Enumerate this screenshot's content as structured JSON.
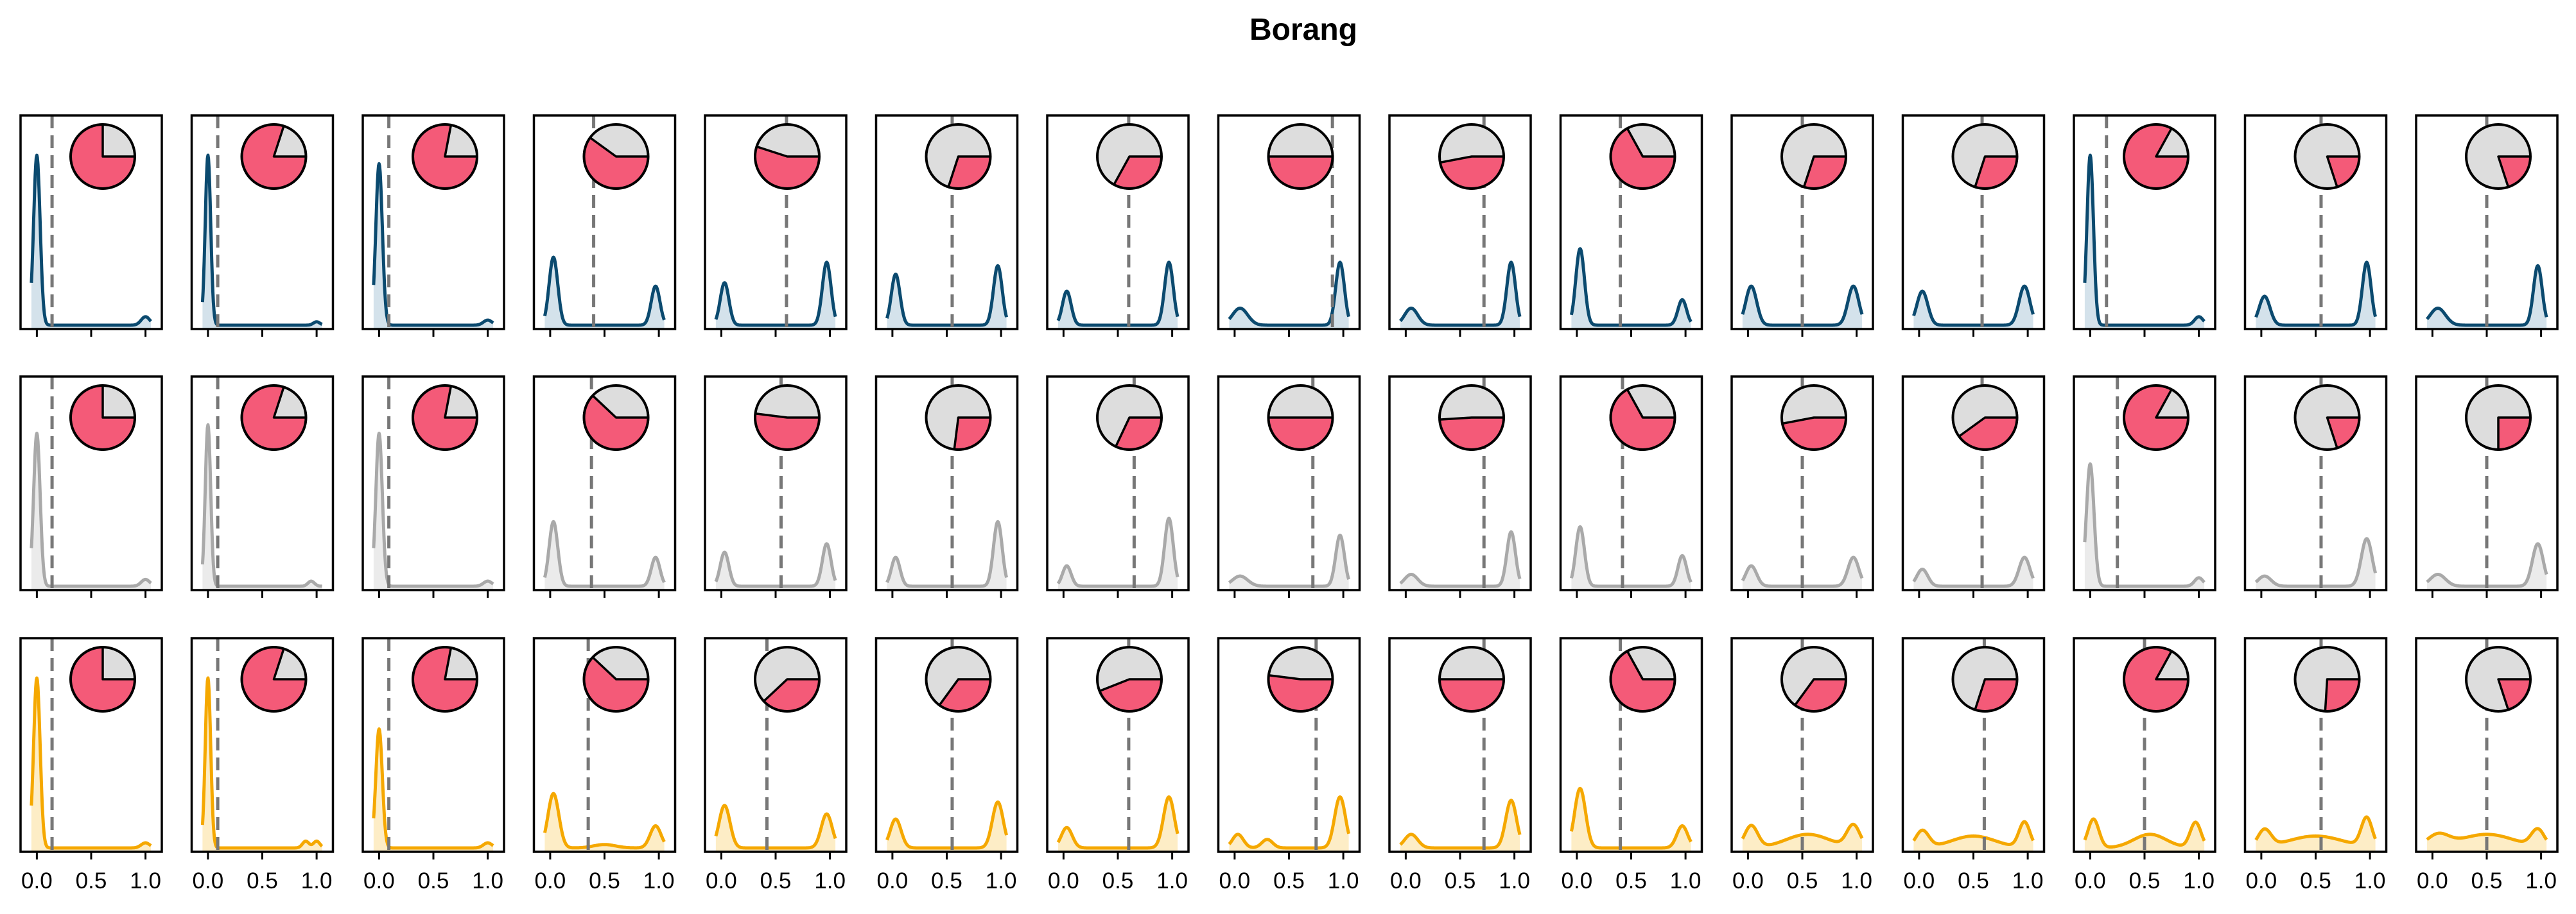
{
  "chart_data": {
    "type": "density-grid",
    "title": "Borang",
    "x_tick_labels": [
      "0.0",
      "0.5",
      "1.0"
    ],
    "xlim": [
      -0.15,
      1.15
    ],
    "pie_colors": {
      "filled": "#f45a78",
      "empty": "#dddddd"
    },
    "rows": [
      {
        "name": "",
        "color": "#0b4a6f",
        "fill": "#c9dbe6"
      },
      {
        "name": "",
        "color": "#a9a9a9",
        "fill": "#e6e6e6"
      },
      {
        "name": "",
        "color": "#f5a800",
        "fill": "#fde8b8"
      }
    ],
    "columns": [
      {
        "peaks": [
          [
            0.0,
            0.03,
            1.0
          ]
        ],
        "rows": [
          {
            "fraction": 0.75,
            "threshold": 0.14,
            "shape": [
              [
                0.0,
                1.0,
                0.03
              ],
              [
                1.0,
                0.05,
                0.04
              ]
            ]
          },
          {
            "fraction": 0.75,
            "threshold": 0.14,
            "shape": [
              [
                0.0,
                0.9,
                0.03
              ],
              [
                1.0,
                0.04,
                0.04
              ]
            ]
          },
          {
            "fraction": 0.75,
            "threshold": 0.14,
            "shape": [
              [
                0.0,
                1.0,
                0.03
              ],
              [
                1.0,
                0.03,
                0.04
              ]
            ]
          }
        ]
      },
      {
        "rows": [
          {
            "fraction": 0.8,
            "threshold": 0.09,
            "shape": [
              [
                0.0,
                1.0,
                0.025
              ],
              [
                1.0,
                0.02,
                0.03
              ]
            ]
          },
          {
            "fraction": 0.8,
            "threshold": 0.09,
            "shape": [
              [
                0.0,
                0.95,
                0.025
              ],
              [
                0.95,
                0.03,
                0.03
              ]
            ]
          },
          {
            "fraction": 0.8,
            "threshold": 0.09,
            "shape": [
              [
                0.0,
                1.0,
                0.025
              ],
              [
                0.9,
                0.04,
                0.03
              ],
              [
                1.0,
                0.04,
                0.03
              ]
            ]
          }
        ]
      },
      {
        "rows": [
          {
            "fraction": 0.78,
            "threshold": 0.09,
            "shape": [
              [
                0.0,
                0.95,
                0.03
              ],
              [
                1.0,
                0.03,
                0.04
              ]
            ]
          },
          {
            "fraction": 0.78,
            "threshold": 0.09,
            "shape": [
              [
                0.0,
                0.9,
                0.03
              ],
              [
                1.0,
                0.03,
                0.04
              ]
            ]
          },
          {
            "fraction": 0.78,
            "threshold": 0.09,
            "shape": [
              [
                0.0,
                0.7,
                0.03
              ],
              [
                1.0,
                0.03,
                0.04
              ]
            ]
          }
        ]
      },
      {
        "rows": [
          {
            "fraction": 0.6,
            "threshold": 0.4,
            "shape": [
              [
                0.03,
                0.4,
                0.04
              ],
              [
                0.97,
                0.23,
                0.04
              ]
            ]
          },
          {
            "fraction": 0.62,
            "threshold": 0.38,
            "shape": [
              [
                0.03,
                0.38,
                0.04
              ],
              [
                0.97,
                0.17,
                0.04
              ]
            ]
          },
          {
            "fraction": 0.62,
            "threshold": 0.35,
            "shape": [
              [
                0.03,
                0.32,
                0.05
              ],
              [
                0.5,
                0.02,
                0.1
              ],
              [
                0.97,
                0.13,
                0.05
              ]
            ]
          }
        ]
      },
      {
        "rows": [
          {
            "fraction": 0.55,
            "threshold": 0.6,
            "shape": [
              [
                0.03,
                0.25,
                0.04
              ],
              [
                0.97,
                0.37,
                0.04
              ]
            ]
          },
          {
            "fraction": 0.52,
            "threshold": 0.55,
            "shape": [
              [
                0.03,
                0.2,
                0.04
              ],
              [
                0.97,
                0.25,
                0.04
              ]
            ]
          },
          {
            "fraction": 0.38,
            "threshold": 0.42,
            "shape": [
              [
                0.03,
                0.25,
                0.05
              ],
              [
                0.97,
                0.2,
                0.05
              ]
            ]
          }
        ]
      },
      {
        "rows": [
          {
            "fraction": 0.3,
            "threshold": 0.55,
            "shape": [
              [
                0.03,
                0.3,
                0.04
              ],
              [
                0.97,
                0.35,
                0.04
              ]
            ]
          },
          {
            "fraction": 0.27,
            "threshold": 0.55,
            "shape": [
              [
                0.03,
                0.17,
                0.04
              ],
              [
                0.97,
                0.38,
                0.04
              ]
            ]
          },
          {
            "fraction": 0.35,
            "threshold": 0.55,
            "shape": [
              [
                0.03,
                0.17,
                0.05
              ],
              [
                0.97,
                0.27,
                0.05
              ]
            ]
          }
        ]
      },
      {
        "rows": [
          {
            "fraction": 0.33,
            "threshold": 0.6,
            "shape": [
              [
                0.03,
                0.2,
                0.04
              ],
              [
                0.97,
                0.37,
                0.04
              ]
            ]
          },
          {
            "fraction": 0.32,
            "threshold": 0.65,
            "shape": [
              [
                0.03,
                0.12,
                0.04
              ],
              [
                0.97,
                0.4,
                0.04
              ]
            ]
          },
          {
            "fraction": 0.44,
            "threshold": 0.6,
            "shape": [
              [
                0.03,
                0.12,
                0.05
              ],
              [
                0.97,
                0.3,
                0.05
              ]
            ]
          }
        ]
      },
      {
        "rows": [
          {
            "fraction": 0.5,
            "threshold": 0.9,
            "shape": [
              [
                0.05,
                0.1,
                0.07
              ],
              [
                0.97,
                0.37,
                0.04
              ]
            ]
          },
          {
            "fraction": 0.5,
            "threshold": 0.72,
            "shape": [
              [
                0.05,
                0.06,
                0.07
              ],
              [
                0.97,
                0.3,
                0.04
              ]
            ]
          },
          {
            "fraction": 0.52,
            "threshold": 0.75,
            "shape": [
              [
                0.03,
                0.08,
                0.05
              ],
              [
                0.3,
                0.05,
                0.05
              ],
              [
                0.97,
                0.3,
                0.05
              ]
            ]
          }
        ]
      },
      {
        "rows": [
          {
            "fraction": 0.47,
            "threshold": 0.72,
            "shape": [
              [
                0.05,
                0.1,
                0.06
              ],
              [
                0.97,
                0.37,
                0.04
              ]
            ]
          },
          {
            "fraction": 0.49,
            "threshold": 0.72,
            "shape": [
              [
                0.05,
                0.07,
                0.06
              ],
              [
                0.97,
                0.32,
                0.04
              ]
            ]
          },
          {
            "fraction": 0.5,
            "threshold": 0.72,
            "shape": [
              [
                0.05,
                0.08,
                0.06
              ],
              [
                0.97,
                0.28,
                0.05
              ]
            ]
          }
        ]
      },
      {
        "rows": [
          {
            "fraction": 0.67,
            "threshold": 0.4,
            "shape": [
              [
                0.03,
                0.45,
                0.04
              ],
              [
                0.97,
                0.15,
                0.04
              ]
            ]
          },
          {
            "fraction": 0.67,
            "threshold": 0.42,
            "shape": [
              [
                0.03,
                0.35,
                0.04
              ],
              [
                0.97,
                0.18,
                0.04
              ]
            ]
          },
          {
            "fraction": 0.67,
            "threshold": 0.4,
            "shape": [
              [
                0.03,
                0.35,
                0.05
              ],
              [
                0.97,
                0.13,
                0.05
              ]
            ]
          }
        ]
      },
      {
        "rows": [
          {
            "fraction": 0.3,
            "threshold": 0.5,
            "shape": [
              [
                0.03,
                0.23,
                0.05
              ],
              [
                0.97,
                0.23,
                0.05
              ]
            ]
          },
          {
            "fraction": 0.47,
            "threshold": 0.5,
            "shape": [
              [
                0.03,
                0.12,
                0.05
              ],
              [
                0.97,
                0.17,
                0.05
              ]
            ]
          },
          {
            "fraction": 0.35,
            "threshold": 0.5,
            "shape": [
              [
                0.03,
                0.13,
                0.06
              ],
              [
                0.55,
                0.08,
                0.2
              ],
              [
                0.97,
                0.13,
                0.06
              ]
            ]
          }
        ]
      },
      {
        "rows": [
          {
            "fraction": 0.3,
            "threshold": 0.58,
            "shape": [
              [
                0.03,
                0.2,
                0.05
              ],
              [
                0.97,
                0.23,
                0.05
              ]
            ]
          },
          {
            "fraction": 0.4,
            "threshold": 0.58,
            "shape": [
              [
                0.03,
                0.1,
                0.05
              ],
              [
                0.97,
                0.17,
                0.05
              ]
            ]
          },
          {
            "fraction": 0.3,
            "threshold": 0.6,
            "shape": [
              [
                0.03,
                0.1,
                0.06
              ],
              [
                0.5,
                0.07,
                0.2
              ],
              [
                0.97,
                0.15,
                0.05
              ]
            ]
          }
        ]
      },
      {
        "rows": [
          {
            "fraction": 0.83,
            "threshold": 0.15,
            "shape": [
              [
                0.0,
                1.0,
                0.03
              ],
              [
                1.0,
                0.05,
                0.04
              ]
            ]
          },
          {
            "fraction": 0.83,
            "threshold": 0.25,
            "shape": [
              [
                0.0,
                0.72,
                0.035
              ],
              [
                1.0,
                0.05,
                0.04
              ]
            ]
          },
          {
            "fraction": 0.83,
            "threshold": 0.5,
            "shape": [
              [
                0.03,
                0.17,
                0.05
              ],
              [
                0.55,
                0.08,
                0.15
              ],
              [
                0.97,
                0.15,
                0.05
              ]
            ]
          }
        ]
      },
      {
        "rows": [
          {
            "fraction": 0.2,
            "threshold": 0.55,
            "shape": [
              [
                0.03,
                0.17,
                0.05
              ],
              [
                0.97,
                0.37,
                0.04
              ]
            ]
          },
          {
            "fraction": 0.2,
            "threshold": 0.55,
            "shape": [
              [
                0.03,
                0.06,
                0.06
              ],
              [
                0.97,
                0.28,
                0.05
              ]
            ]
          },
          {
            "fraction": 0.26,
            "threshold": 0.55,
            "shape": [
              [
                0.03,
                0.1,
                0.06
              ],
              [
                0.5,
                0.07,
                0.25
              ],
              [
                0.97,
                0.17,
                0.05
              ]
            ]
          }
        ]
      },
      {
        "rows": [
          {
            "fraction": 0.2,
            "threshold": 0.5,
            "shape": [
              [
                0.05,
                0.1,
                0.07
              ],
              [
                0.97,
                0.35,
                0.04
              ]
            ]
          },
          {
            "fraction": 0.25,
            "threshold": 0.5,
            "shape": [
              [
                0.05,
                0.07,
                0.07
              ],
              [
                0.97,
                0.25,
                0.05
              ]
            ]
          },
          {
            "fraction": 0.2,
            "threshold": 0.5,
            "shape": [
              [
                0.05,
                0.07,
                0.1
              ],
              [
                0.5,
                0.08,
                0.25
              ],
              [
                0.97,
                0.1,
                0.06
              ]
            ]
          }
        ]
      }
    ]
  }
}
